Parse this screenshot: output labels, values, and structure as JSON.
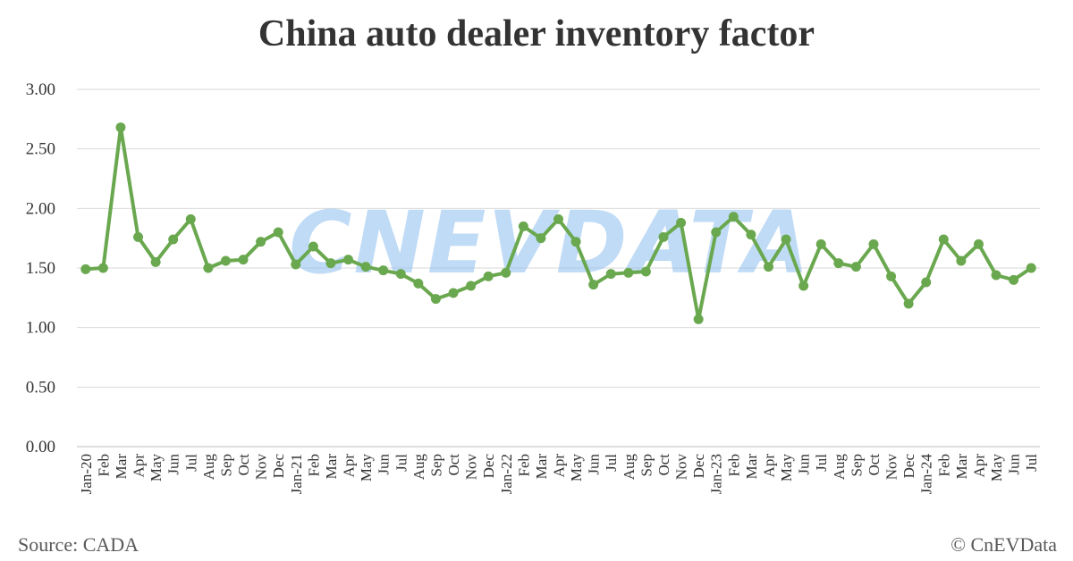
{
  "chart_data": {
    "type": "line",
    "title": "China auto dealer inventory factor",
    "xlabel": "",
    "ylabel": "",
    "ylim": [
      0,
      3
    ],
    "yticks": [
      "0.00",
      "0.50",
      "1.00",
      "1.50",
      "2.00",
      "2.50",
      "3.00"
    ],
    "grid": true,
    "legend": "none",
    "categories": [
      "Jan-20",
      "Feb",
      "Mar",
      "Apr",
      "May",
      "Jun",
      "Jul",
      "Aug",
      "Sep",
      "Oct",
      "Nov",
      "Dec",
      "Jan-21",
      "Feb",
      "Mar",
      "Apr",
      "May",
      "Jun",
      "Jul",
      "Aug",
      "Sep",
      "Oct",
      "Nov",
      "Dec",
      "Jan-22",
      "Feb",
      "Mar",
      "Apr",
      "May",
      "Jun",
      "Jul",
      "Aug",
      "Sep",
      "Oct",
      "Nov",
      "Dec",
      "Jan-23",
      "Feb",
      "Mar",
      "Apr",
      "May",
      "Jun",
      "Jul",
      "Aug",
      "Sep",
      "Oct",
      "Nov",
      "Dec",
      "Jan-24",
      "Feb",
      "Mar",
      "Apr",
      "May",
      "Jun",
      "Jul"
    ],
    "series": [
      {
        "values": [
          1.49,
          1.5,
          2.68,
          1.76,
          1.55,
          1.74,
          1.91,
          1.5,
          1.56,
          1.57,
          1.72,
          1.8,
          1.53,
          1.68,
          1.54,
          1.57,
          1.51,
          1.48,
          1.45,
          1.37,
          1.24,
          1.29,
          1.35,
          1.43,
          1.46,
          1.85,
          1.75,
          1.91,
          1.72,
          1.36,
          1.45,
          1.46,
          1.47,
          1.76,
          1.88,
          1.07,
          1.8,
          1.93,
          1.78,
          1.51,
          1.74,
          1.35,
          1.7,
          1.54,
          1.51,
          1.7,
          1.43,
          1.2,
          1.38,
          1.74,
          1.56,
          1.7,
          1.44,
          1.4,
          1.5
        ]
      }
    ],
    "color": "#6aa84f",
    "watermark": "CNEVDATA"
  },
  "footer": {
    "source": "Source: CADA",
    "credit": "© CnEVData"
  }
}
